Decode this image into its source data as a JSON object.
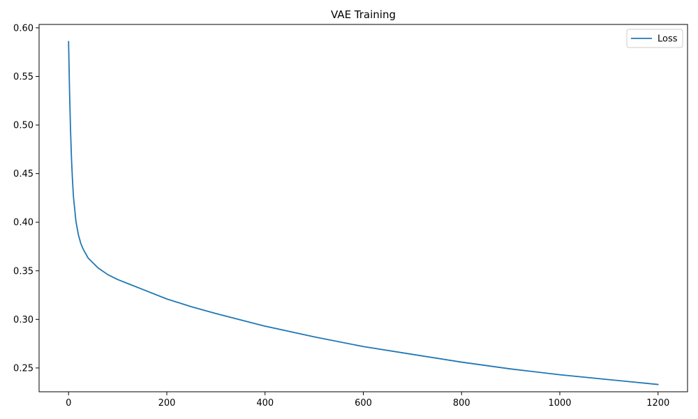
{
  "chart_data": {
    "type": "line",
    "title": "VAE Training",
    "xlabel": "",
    "ylabel": "",
    "xlim": [
      -60,
      1260
    ],
    "ylim": [
      0.2255,
      0.6035
    ],
    "grid": false,
    "legend_placement": "top-right",
    "x_ticks": [
      0,
      200,
      400,
      600,
      800,
      1000,
      1200
    ],
    "y_ticks": [
      0.25,
      0.3,
      0.35,
      0.4,
      0.45,
      0.5,
      0.55,
      0.6
    ],
    "y_tick_labels": [
      "0.25",
      "0.30",
      "0.35",
      "0.40",
      "0.45",
      "0.50",
      "0.55",
      "0.60"
    ],
    "series": [
      {
        "name": "Loss",
        "color": "#1f77b4",
        "x": [
          0,
          2,
          4,
          6,
          8,
          10,
          15,
          20,
          25,
          30,
          40,
          50,
          60,
          80,
          100,
          125,
          150,
          200,
          250,
          300,
          400,
          500,
          600,
          700,
          800,
          900,
          1000,
          1100,
          1200
        ],
        "y": [
          0.586,
          0.535,
          0.495,
          0.465,
          0.443,
          0.426,
          0.401,
          0.387,
          0.378,
          0.372,
          0.363,
          0.358,
          0.353,
          0.346,
          0.341,
          0.336,
          0.331,
          0.321,
          0.313,
          0.306,
          0.293,
          0.282,
          0.272,
          0.264,
          0.256,
          0.249,
          0.243,
          0.238,
          0.233
        ]
      }
    ]
  }
}
